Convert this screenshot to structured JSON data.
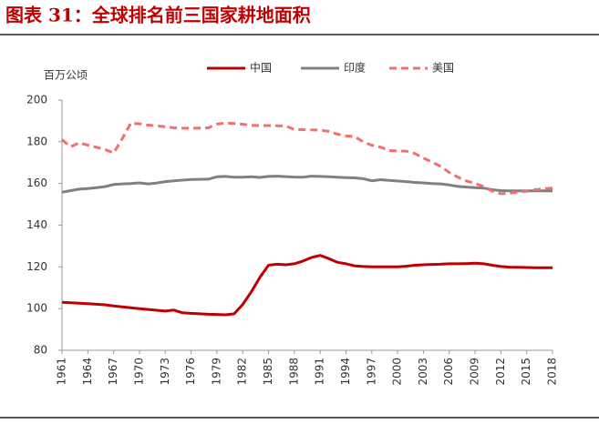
{
  "chart_data": {
    "type": "line",
    "title": "图表 31：全球排名前三国家耕地面积",
    "y_label": "百万公顷",
    "x": [
      1961,
      1962,
      1963,
      1964,
      1965,
      1966,
      1967,
      1968,
      1969,
      1970,
      1971,
      1972,
      1973,
      1974,
      1975,
      1976,
      1977,
      1978,
      1979,
      1980,
      1981,
      1982,
      1983,
      1984,
      1985,
      1986,
      1987,
      1988,
      1989,
      1990,
      1991,
      1992,
      1993,
      1994,
      1995,
      1996,
      1997,
      1998,
      1999,
      2000,
      2001,
      2002,
      2003,
      2004,
      2005,
      2006,
      2007,
      2008,
      2009,
      2010,
      2011,
      2012,
      2013,
      2014,
      2015,
      2016,
      2017,
      2018
    ],
    "xlim": [
      1961,
      2018
    ],
    "xticks": [
      1961,
      1964,
      1967,
      1970,
      1973,
      1976,
      1979,
      1982,
      1985,
      1988,
      1991,
      1994,
      1997,
      2000,
      2003,
      2006,
      2009,
      2012,
      2015,
      2018
    ],
    "ylim": [
      80,
      200
    ],
    "yticks": [
      80,
      100,
      120,
      140,
      160,
      180,
      200
    ],
    "grid": false,
    "series": [
      {
        "name": "中国",
        "color": "#c00000",
        "dashed": false,
        "values": [
          103,
          102.8,
          102.6,
          102.4,
          102.1,
          101.8,
          101.3,
          100.8,
          100.4,
          100,
          99.6,
          99.2,
          98.8,
          99.3,
          98,
          97.7,
          97.5,
          97.3,
          97.2,
          97,
          97.5,
          102,
          108,
          115,
          120.8,
          121.3,
          121,
          121.5,
          122.8,
          124.5,
          125.5,
          124,
          122.2,
          121.5,
          120.5,
          120.2,
          120,
          120,
          120,
          120,
          120.3,
          120.8,
          121,
          121.2,
          121.3,
          121.5,
          121.5,
          121.6,
          121.8,
          121.5,
          120.8,
          120.2,
          119.9,
          119.8,
          119.7,
          119.6,
          119.6,
          119.6
        ]
      },
      {
        "name": "印度",
        "color": "#808080",
        "dashed": false,
        "values": [
          155.8,
          156.6,
          157.3,
          157.6,
          158,
          158.5,
          159.5,
          159.8,
          160,
          160.3,
          159.8,
          160.2,
          160.9,
          161.3,
          161.6,
          161.9,
          162,
          162.1,
          163.2,
          163.4,
          163,
          163,
          163.2,
          162.9,
          163.4,
          163.5,
          163.3,
          163.1,
          163,
          163.5,
          163.4,
          163.2,
          163,
          162.8,
          162.7,
          162.3,
          161.3,
          161.8,
          161.5,
          161.2,
          160.9,
          160.5,
          160.3,
          160,
          159.8,
          159.3,
          158.6,
          158.3,
          158,
          157.8,
          157,
          156.6,
          156.5,
          156.5,
          156.5,
          156.5,
          156.5,
          156.5
        ]
      },
      {
        "name": "美国",
        "color": "#f07070",
        "dashed": true,
        "values": [
          181,
          177.6,
          179.5,
          178.4,
          177.4,
          176.3,
          174.6,
          181.5,
          189,
          188.6,
          188,
          187.6,
          187.2,
          186.7,
          186.5,
          186.5,
          186.6,
          186.7,
          188.5,
          189,
          188.8,
          188.4,
          187.9,
          187.8,
          187.8,
          187.7,
          187.6,
          185.9,
          185.8,
          185.7,
          185.6,
          185,
          183.7,
          182.8,
          182.5,
          180,
          178.3,
          177.5,
          175.8,
          175.6,
          175.5,
          174.4,
          172.2,
          170.3,
          168.2,
          165.3,
          163,
          161.2,
          160,
          158.6,
          156.3,
          155.1,
          155.3,
          155.9,
          156.3,
          157,
          157.5,
          157.8
        ]
      }
    ]
  }
}
